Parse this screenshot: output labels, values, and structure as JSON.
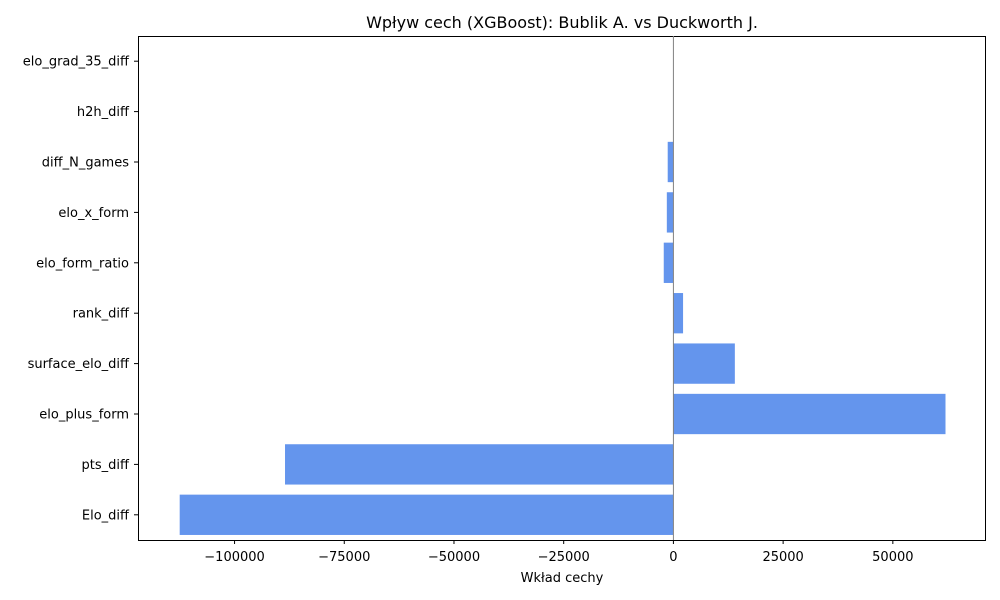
{
  "chart_data": {
    "type": "bar",
    "orientation": "horizontal",
    "title": "Wpływ cech (XGBoost): Bublik A. vs Duckworth J.",
    "xlabel": "Wkład cechy",
    "ylabel": "",
    "categories": [
      "Elo_diff",
      "pts_diff",
      "elo_plus_form",
      "surface_elo_diff",
      "rank_diff",
      "elo_form_ratio",
      "elo_x_form",
      "diff_N_games",
      "h2h_diff",
      "elo_grad_35_diff"
    ],
    "values": [
      -112500,
      -88500,
      62000,
      14000,
      2200,
      -2200,
      -1500,
      -1300,
      0,
      0
    ],
    "xlim": [
      -122000,
      71000
    ],
    "xticks": [
      -100000,
      -75000,
      -50000,
      -25000,
      0,
      25000,
      50000
    ],
    "xtick_labels": [
      "−100000",
      "−75000",
      "−50000",
      "−25000",
      "0",
      "25000",
      "50000"
    ],
    "bar_color": "#6495ED",
    "zero_line_color": "#808080",
    "grid": false,
    "legend": "none"
  }
}
